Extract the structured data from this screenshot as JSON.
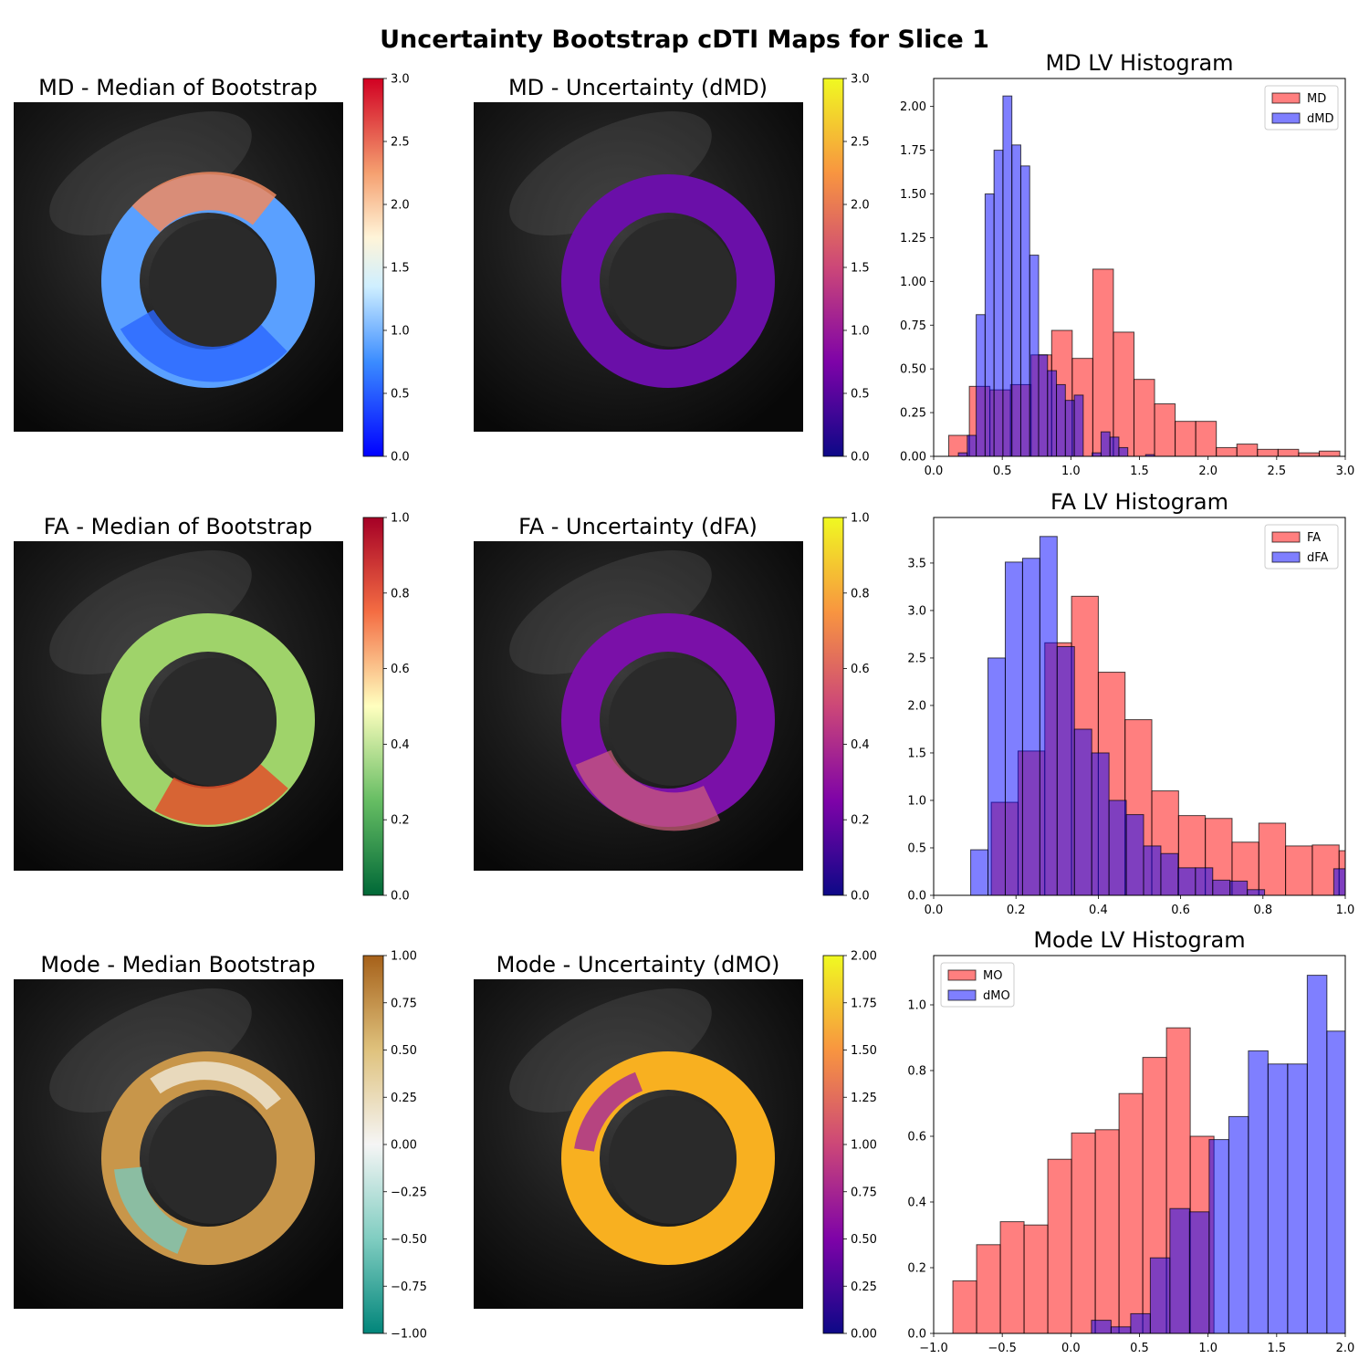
{
  "figure": {
    "title": "Uncertainty Bootstrap cDTI Maps for Slice 1"
  },
  "maps": [
    {
      "title": "MD - Median of Bootstrap",
      "cmap": "bwr",
      "vmin": 0,
      "vmax": 3,
      "ticks": [
        "0.0",
        "0.5",
        "1.0",
        "1.5",
        "2.0",
        "2.5",
        "3.0"
      ]
    },
    {
      "title": "MD - Uncertainty (dMD)",
      "cmap": "plasma",
      "vmin": 0,
      "vmax": 3,
      "ticks": [
        "0.0",
        "0.5",
        "1.0",
        "1.5",
        "2.0",
        "2.5",
        "3.0"
      ]
    },
    {
      "title": "FA - Median of Bootstrap",
      "cmap": "RdYlGn_r",
      "vmin": 0,
      "vmax": 1,
      "ticks": [
        "0.0",
        "0.2",
        "0.4",
        "0.6",
        "0.8",
        "1.0"
      ]
    },
    {
      "title": "FA - Uncertainty (dFA)",
      "cmap": "plasma",
      "vmin": 0,
      "vmax": 1,
      "ticks": [
        "0.0",
        "0.2",
        "0.4",
        "0.6",
        "0.8",
        "1.0"
      ]
    },
    {
      "title": "Mode - Median Bootstrap",
      "cmap": "BrBG_r",
      "vmin": -1,
      "vmax": 1,
      "ticks": [
        "−1.00",
        "−0.75",
        "−0.50",
        "−0.25",
        "0.00",
        "0.25",
        "0.50",
        "0.75",
        "1.00"
      ]
    },
    {
      "title": "Mode - Uncertainty (dMO)",
      "cmap": "plasma",
      "vmin": 0,
      "vmax": 2,
      "ticks": [
        "0.00",
        "0.25",
        "0.50",
        "0.75",
        "1.00",
        "1.25",
        "1.50",
        "1.75",
        "2.00"
      ]
    }
  ],
  "colors": {
    "red": "#ff0000",
    "blue": "#0000ff",
    "edge": "#000000"
  },
  "chart_data": [
    {
      "type": "bar",
      "title": "MD LV Histogram",
      "xlim": [
        0,
        3
      ],
      "ylim": [
        0,
        2.16
      ],
      "xticks": [
        "0.0",
        "0.5",
        "1.0",
        "1.5",
        "2.0",
        "2.5",
        "3.0"
      ],
      "xtick_values": [
        0,
        0.5,
        1.0,
        1.5,
        2.0,
        2.5,
        3.0
      ],
      "yticks": [
        "0.00",
        "0.25",
        "0.50",
        "0.75",
        "1.00",
        "1.25",
        "1.50",
        "1.75",
        "2.00"
      ],
      "ytick_values": [
        0,
        0.25,
        0.5,
        0.75,
        1.0,
        1.25,
        1.5,
        1.75,
        2.0
      ],
      "legend": "upper right",
      "series": [
        {
          "name": "MD",
          "color": "#ff0000",
          "edges": [
            0.11,
            0.26,
            0.41,
            0.56,
            0.71,
            0.86,
            1.01,
            1.16,
            1.31,
            1.46,
            1.61,
            1.76,
            1.91,
            2.06,
            2.21,
            2.36,
            2.51,
            2.66,
            2.81,
            2.96,
            3.11
          ],
          "values": [
            0.12,
            0.4,
            0.38,
            0.41,
            0.58,
            0.72,
            0.56,
            1.07,
            0.71,
            0.44,
            0.3,
            0.2,
            0.2,
            0.05,
            0.07,
            0.04,
            0.04,
            0.02,
            0.03,
            0.0
          ]
        },
        {
          "name": "dMD",
          "color": "#0000ff",
          "edges": [
            0.18,
            0.245,
            0.31,
            0.375,
            0.44,
            0.505,
            0.57,
            0.635,
            0.7,
            0.765,
            0.83,
            0.895,
            0.96,
            1.025,
            1.09,
            1.155,
            1.22,
            1.285,
            1.35,
            1.415,
            1.48,
            1.545,
            1.61
          ],
          "values": [
            0.02,
            0.12,
            0.81,
            1.5,
            1.75,
            2.06,
            1.78,
            1.66,
            1.15,
            0.58,
            0.49,
            0.41,
            0.32,
            0.35,
            0.0,
            0.02,
            0.14,
            0.11,
            0.05,
            0.0,
            0.0,
            0.01
          ]
        }
      ]
    },
    {
      "type": "bar",
      "title": "FA LV Histogram",
      "xlim": [
        0,
        1
      ],
      "ylim": [
        0,
        3.98
      ],
      "xticks": [
        "0.0",
        "0.2",
        "0.4",
        "0.6",
        "0.8",
        "1.0"
      ],
      "xtick_values": [
        0,
        0.2,
        0.4,
        0.6,
        0.8,
        1.0
      ],
      "yticks": [
        "0.0",
        "0.5",
        "1.0",
        "1.5",
        "2.0",
        "2.5",
        "3.0",
        "3.5"
      ],
      "ytick_values": [
        0,
        0.5,
        1.0,
        1.5,
        2.0,
        2.5,
        3.0,
        3.5
      ],
      "legend": "upper right",
      "series": [
        {
          "name": "FA",
          "color": "#ff0000",
          "edges": [
            0.14,
            0.205,
            0.27,
            0.335,
            0.4,
            0.465,
            0.53,
            0.595,
            0.66,
            0.725,
            0.79,
            0.855,
            0.92,
            0.985,
            1.05
          ],
          "values": [
            0.98,
            1.52,
            2.66,
            3.15,
            2.35,
            1.85,
            1.1,
            0.84,
            0.81,
            0.56,
            0.76,
            0.52,
            0.53,
            0.47
          ]
        },
        {
          "name": "dFA",
          "color": "#0000ff",
          "edges": [
            0.09,
            0.132,
            0.174,
            0.216,
            0.258,
            0.3,
            0.342,
            0.384,
            0.426,
            0.468,
            0.51,
            0.552,
            0.594,
            0.636,
            0.678,
            0.72,
            0.762,
            0.804,
            0.846,
            0.888,
            0.93,
            0.972,
            1.014
          ],
          "values": [
            0.48,
            2.5,
            3.51,
            3.55,
            3.78,
            2.62,
            1.75,
            1.5,
            1.0,
            0.85,
            0.52,
            0.44,
            0.29,
            0.29,
            0.16,
            0.15,
            0.06,
            0.0,
            0.0,
            0.0,
            0.0,
            0.28
          ]
        }
      ]
    },
    {
      "type": "bar",
      "title": "Mode LV Histogram",
      "xlim": [
        -1,
        2
      ],
      "ylim": [
        0,
        1.15
      ],
      "xticks": [
        "−1.0",
        "−0.5",
        "0.0",
        "0.5",
        "1.0",
        "1.5",
        "2.0"
      ],
      "xtick_values": [
        -1.0,
        -0.5,
        0.0,
        0.5,
        1.0,
        1.5,
        2.0
      ],
      "yticks": [
        "0.0",
        "0.2",
        "0.4",
        "0.6",
        "0.8",
        "1.0"
      ],
      "ytick_values": [
        0,
        0.2,
        0.4,
        0.6,
        0.8,
        1.0
      ],
      "legend": "upper left",
      "series": [
        {
          "name": "MO",
          "color": "#ff0000",
          "edges": [
            -0.86,
            -0.687,
            -0.514,
            -0.341,
            -0.168,
            0.005,
            0.178,
            0.351,
            0.524,
            0.697,
            0.87,
            1.043
          ],
          "values": [
            0.16,
            0.27,
            0.34,
            0.33,
            0.53,
            0.61,
            0.62,
            0.73,
            0.84,
            0.93,
            0.6
          ]
        },
        {
          "name": "dMO",
          "color": "#0000ff",
          "edges": [
            0.15,
            0.293,
            0.436,
            0.579,
            0.722,
            0.865,
            1.008,
            1.151,
            1.294,
            1.437,
            1.58,
            1.723,
            1.866,
            2.009
          ],
          "values": [
            0.04,
            0.02,
            0.06,
            0.23,
            0.38,
            0.37,
            0.59,
            0.66,
            0.86,
            0.82,
            0.82,
            1.09,
            0.92
          ]
        }
      ]
    }
  ]
}
